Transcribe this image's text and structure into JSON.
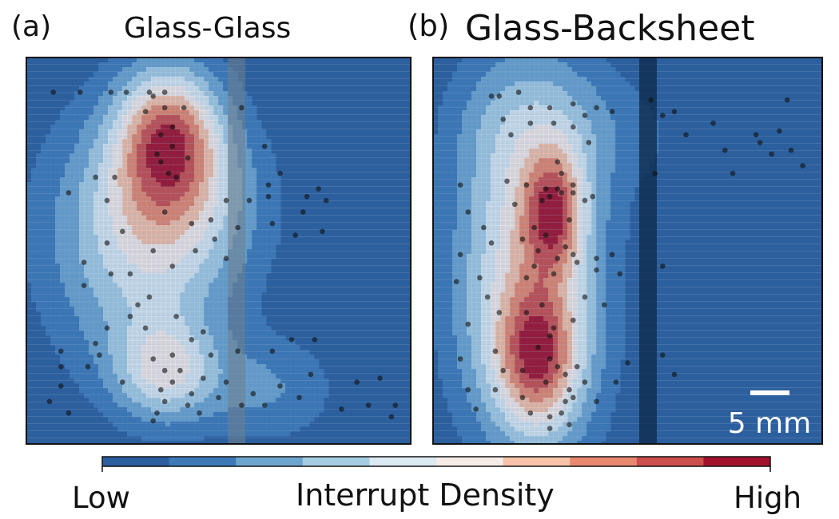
{
  "panels": [
    {
      "label": "(a)",
      "title": "Glass-Glass"
    },
    {
      "label": "(b)",
      "title": "Glass-Backsheet"
    }
  ],
  "scale_bar": {
    "text": "5 mm"
  },
  "colorbar": {
    "low_label": "Low",
    "high_label": "High",
    "title": "Interrupt Density",
    "colors": [
      "#2c5f9e",
      "#3e7ab8",
      "#6ea5cf",
      "#a7cde4",
      "#dbe9f1",
      "#f5ece8",
      "#f6c2a8",
      "#e8896f",
      "#cc4f4e",
      "#a3122d"
    ]
  },
  "chart_data": [
    {
      "type": "heatmap",
      "title": "Glass-Glass",
      "xlabel": "",
      "ylabel": "",
      "xlim": [
        0,
        10
      ],
      "ylim": [
        0,
        10
      ],
      "levels": 10,
      "density_peaks": [
        {
          "x": 3.7,
          "y": 8.0,
          "sx": 0.95,
          "sy": 1.25,
          "amp": 1.0
        },
        {
          "x": 3.8,
          "y": 6.2,
          "sx": 1.6,
          "sy": 1.6,
          "amp": 0.55
        },
        {
          "x": 3.6,
          "y": 1.9,
          "sx": 0.9,
          "sy": 0.9,
          "amp": 0.62
        },
        {
          "x": 3.0,
          "y": 3.8,
          "sx": 1.6,
          "sy": 2.0,
          "amp": 0.3
        },
        {
          "x": 6.3,
          "y": 1.4,
          "sx": 1.3,
          "sy": 1.0,
          "amp": 0.3
        },
        {
          "x": 2.5,
          "y": 6.0,
          "sx": 2.0,
          "sy": 2.5,
          "amp": 0.22
        }
      ],
      "points": [
        [
          0.7,
          9.1
        ],
        [
          1.4,
          9.1
        ],
        [
          2.2,
          9.1
        ],
        [
          2.6,
          9.1
        ],
        [
          3.2,
          9.1
        ],
        [
          3.3,
          9.0
        ],
        [
          5.6,
          8.7
        ],
        [
          3.1,
          8.6
        ],
        [
          3.6,
          8.7
        ],
        [
          3.6,
          9.1
        ],
        [
          3.8,
          8.2
        ],
        [
          4.1,
          8.7
        ],
        [
          3.5,
          8.0
        ],
        [
          3.4,
          7.5
        ],
        [
          3.8,
          7.7
        ],
        [
          3.5,
          7.3
        ],
        [
          3.7,
          7.0
        ],
        [
          4.2,
          7.4
        ],
        [
          3.9,
          6.9
        ],
        [
          6.6,
          7.0
        ],
        [
          6.2,
          7.7
        ],
        [
          6.3,
          6.7
        ],
        [
          5.2,
          6.3
        ],
        [
          5.8,
          6.3
        ],
        [
          6.3,
          6.4
        ],
        [
          7.3,
          6.4
        ],
        [
          7.6,
          6.6
        ],
        [
          7.8,
          6.3
        ],
        [
          7.2,
          6.0
        ],
        [
          4.8,
          5.8
        ],
        [
          2.5,
          5.5
        ],
        [
          2.1,
          5.2
        ],
        [
          1.1,
          6.5
        ],
        [
          1.8,
          6.9
        ],
        [
          2.1,
          6.3
        ],
        [
          2.3,
          6.9
        ],
        [
          3.6,
          6.0
        ],
        [
          4.3,
          5.7
        ],
        [
          4.9,
          5.3
        ],
        [
          5.2,
          4.8
        ],
        [
          5.5,
          5.6
        ],
        [
          6.4,
          5.7
        ],
        [
          7.0,
          5.4
        ],
        [
          7.7,
          5.5
        ],
        [
          3.3,
          5.0
        ],
        [
          4.4,
          5.0
        ],
        [
          3.8,
          4.6
        ],
        [
          2.7,
          4.4
        ],
        [
          2.2,
          4.4
        ],
        [
          1.5,
          4.1
        ],
        [
          1.5,
          4.7
        ],
        [
          3.2,
          3.8
        ],
        [
          3.9,
          3.3
        ],
        [
          2.1,
          3.0
        ],
        [
          2.7,
          3.3
        ],
        [
          2.9,
          3.6
        ],
        [
          1.8,
          2.6
        ],
        [
          1.9,
          2.3
        ],
        [
          0.9,
          2.4
        ],
        [
          1.6,
          2.0
        ],
        [
          0.9,
          2.0
        ],
        [
          4.3,
          2.7
        ],
        [
          3.3,
          2.2
        ],
        [
          3.6,
          1.9
        ],
        [
          3.8,
          1.6
        ],
        [
          4.3,
          1.3
        ],
        [
          4.6,
          1.7
        ],
        [
          5.0,
          1.2
        ],
        [
          5.2,
          1.6
        ],
        [
          5.6,
          1.0
        ],
        [
          5.9,
          1.3
        ],
        [
          6.2,
          1.0
        ],
        [
          6.6,
          1.5
        ],
        [
          7.1,
          1.2
        ],
        [
          7.4,
          1.8
        ],
        [
          8.6,
          1.6
        ],
        [
          8.9,
          1.0
        ],
        [
          9.2,
          1.7
        ],
        [
          9.5,
          0.7
        ],
        [
          9.6,
          1.0
        ],
        [
          8.2,
          0.9
        ],
        [
          7.5,
          2.7
        ],
        [
          6.9,
          2.7
        ],
        [
          6.4,
          2.4
        ],
        [
          5.5,
          2.4
        ],
        [
          4.8,
          2.3
        ],
        [
          4.6,
          2.9
        ],
        [
          3.1,
          3.0
        ],
        [
          3.5,
          1.4
        ],
        [
          3.6,
          1.1
        ],
        [
          4.2,
          1.0
        ],
        [
          4.5,
          0.8
        ],
        [
          3.4,
          0.8
        ],
        [
          3.3,
          0.6
        ],
        [
          1.1,
          0.8
        ],
        [
          0.6,
          1.1
        ],
        [
          0.9,
          1.5
        ],
        [
          2.5,
          1.6
        ],
        [
          3.8,
          2.3
        ],
        [
          4.0,
          1.9
        ]
      ]
    },
    {
      "type": "heatmap",
      "title": "Glass-Backsheet",
      "xlabel": "",
      "ylabel": "",
      "xlim": [
        0,
        10
      ],
      "ylim": [
        0,
        10
      ],
      "levels": 10,
      "density_peaks": [
        {
          "x": 3.1,
          "y": 6.0,
          "sx": 0.55,
          "sy": 1.1,
          "amp": 0.92
        },
        {
          "x": 2.7,
          "y": 2.2,
          "sx": 0.75,
          "sy": 1.3,
          "amp": 1.0
        },
        {
          "x": 2.9,
          "y": 4.4,
          "sx": 1.25,
          "sy": 3.5,
          "amp": 0.66
        },
        {
          "x": 1.8,
          "y": 6.5,
          "sx": 1.1,
          "sy": 2.6,
          "amp": 0.32
        },
        {
          "x": 1.5,
          "y": 2.8,
          "sx": 1.1,
          "sy": 2.2,
          "amp": 0.25
        },
        {
          "x": 7.2,
          "y": 7.8,
          "sx": 3.2,
          "sy": 1.1,
          "amp": 0.1
        },
        {
          "x": 3.0,
          "y": 8.4,
          "sx": 1.8,
          "sy": 1.2,
          "amp": 0.22
        }
      ],
      "points": [
        [
          1.5,
          9.0
        ],
        [
          1.7,
          9.0
        ],
        [
          2.2,
          9.1
        ],
        [
          2.5,
          8.7
        ],
        [
          3.0,
          8.7
        ],
        [
          3.6,
          8.8
        ],
        [
          3.9,
          8.5
        ],
        [
          4.2,
          8.7
        ],
        [
          4.6,
          8.6
        ],
        [
          5.6,
          8.9
        ],
        [
          5.9,
          8.5
        ],
        [
          6.2,
          8.6
        ],
        [
          6.5,
          8.0
        ],
        [
          7.2,
          8.3
        ],
        [
          7.5,
          7.6
        ],
        [
          8.4,
          7.8
        ],
        [
          8.3,
          8.0
        ],
        [
          8.7,
          7.5
        ],
        [
          8.9,
          8.1
        ],
        [
          9.2,
          7.6
        ],
        [
          9.5,
          7.2
        ],
        [
          9.1,
          8.9
        ],
        [
          5.7,
          7.0
        ],
        [
          7.7,
          7.0
        ],
        [
          1.8,
          8.4
        ],
        [
          2.0,
          8.0
        ],
        [
          2.5,
          8.3
        ],
        [
          3.1,
          8.3
        ],
        [
          3.6,
          8.2
        ],
        [
          4.0,
          7.8
        ],
        [
          3.2,
          7.3
        ],
        [
          3.3,
          7.0
        ],
        [
          3.6,
          6.7
        ],
        [
          2.9,
          6.6
        ],
        [
          2.4,
          6.7
        ],
        [
          3.0,
          6.4
        ],
        [
          3.2,
          6.6
        ],
        [
          3.3,
          6.5
        ],
        [
          3.6,
          6.5
        ],
        [
          3.9,
          6.3
        ],
        [
          0.7,
          6.7
        ],
        [
          0.9,
          6.0
        ],
        [
          2.1,
          6.2
        ],
        [
          2.8,
          6.3
        ],
        [
          3.5,
          5.8
        ],
        [
          2.6,
          5.6
        ],
        [
          2.9,
          5.4
        ],
        [
          2.7,
          5.0
        ],
        [
          3.4,
          5.1
        ],
        [
          3.2,
          4.8
        ],
        [
          2.6,
          4.6
        ],
        [
          2.4,
          4.3
        ],
        [
          3.1,
          4.4
        ],
        [
          3.7,
          4.7
        ],
        [
          3.6,
          4.9
        ],
        [
          4.2,
          4.8
        ],
        [
          4.6,
          4.9
        ],
        [
          4.8,
          4.4
        ],
        [
          4.2,
          4.5
        ],
        [
          0.7,
          4.9
        ],
        [
          0.6,
          4.2
        ],
        [
          1.2,
          4.3
        ],
        [
          1.4,
          3.8
        ],
        [
          0.9,
          3.1
        ],
        [
          1.7,
          3.4
        ],
        [
          2.4,
          3.4
        ],
        [
          2.8,
          3.6
        ],
        [
          3.6,
          3.2
        ],
        [
          4.4,
          3.6
        ],
        [
          3.9,
          3.8
        ],
        [
          3.1,
          3.0
        ],
        [
          3.0,
          2.8
        ],
        [
          2.7,
          2.5
        ],
        [
          3.0,
          2.2
        ],
        [
          3.2,
          2.0
        ],
        [
          3.4,
          1.8
        ],
        [
          3.7,
          2.0
        ],
        [
          3.9,
          1.6
        ],
        [
          3.5,
          1.4
        ],
        [
          2.9,
          1.6
        ],
        [
          2.3,
          1.9
        ],
        [
          1.8,
          1.9
        ],
        [
          1.6,
          2.4
        ],
        [
          0.7,
          2.2
        ],
        [
          0.9,
          1.4
        ],
        [
          1.6,
          1.4
        ],
        [
          2.3,
          1.2
        ],
        [
          2.5,
          0.8
        ],
        [
          3.0,
          0.7
        ],
        [
          3.3,
          0.8
        ],
        [
          3.4,
          1.1
        ],
        [
          3.6,
          1.2
        ],
        [
          4.2,
          1.1
        ],
        [
          4.7,
          1.6
        ],
        [
          5.0,
          2.1
        ],
        [
          3.0,
          0.4
        ],
        [
          3.5,
          0.5
        ],
        [
          5.9,
          4.6
        ],
        [
          5.9,
          2.3
        ],
        [
          6.2,
          1.8
        ],
        [
          1.1,
          0.9
        ],
        [
          1.3,
          5.6
        ],
        [
          1.5,
          5.2
        ],
        [
          2.3,
          5.3
        ],
        [
          1.9,
          6.8
        ],
        [
          4.1,
          6.4
        ]
      ]
    }
  ]
}
